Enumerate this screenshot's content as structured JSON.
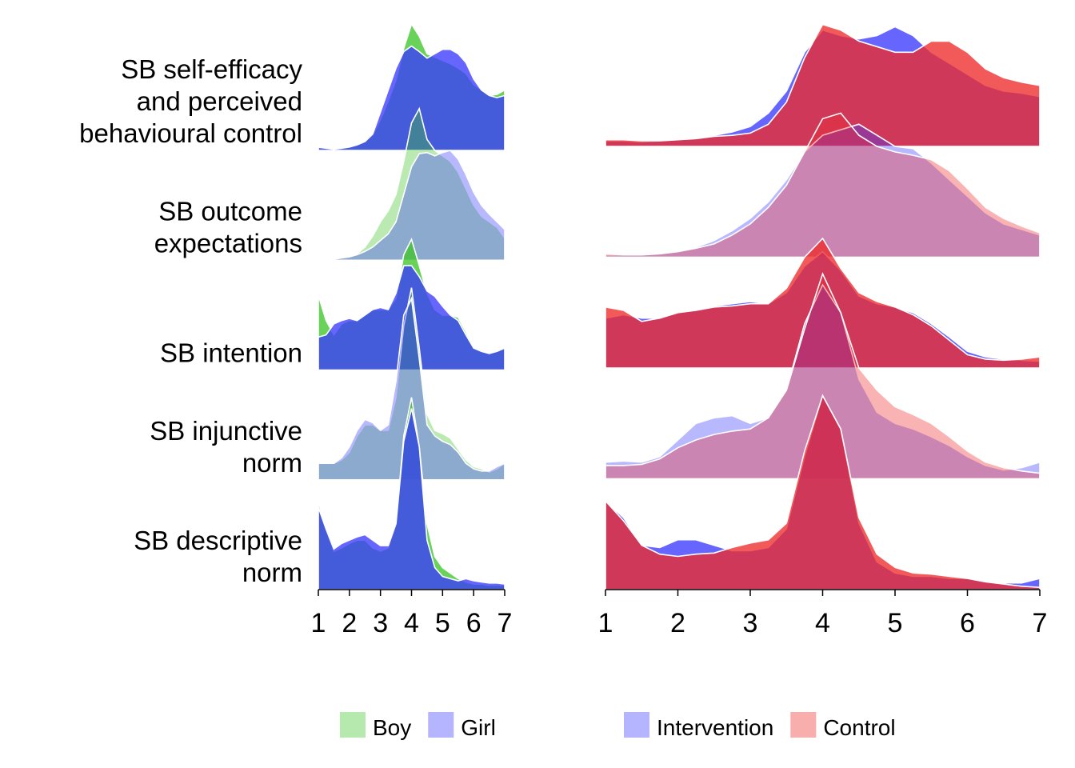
{
  "chart_data": [
    {
      "type": "ridgeline",
      "categories": [
        [
          "SB self-efficacy",
          "and perceived",
          "behavioural control"
        ],
        [
          "SB outcome",
          "expectations"
        ],
        [
          "SB intention"
        ],
        [
          "SB injunctive",
          "norm"
        ],
        [
          "SB descriptive",
          "norm"
        ]
      ],
      "x": [
        1,
        1.25,
        1.5,
        1.75,
        2,
        2.25,
        2.5,
        2.75,
        3,
        3.25,
        3.5,
        3.75,
        4,
        4.25,
        4.5,
        4.75,
        5,
        5.25,
        5.5,
        5.75,
        6,
        6.25,
        6.5,
        6.75,
        7
      ],
      "xlim": [
        1,
        7
      ],
      "xticks": [
        1,
        2,
        3,
        4,
        5,
        6,
        7
      ],
      "series": [
        {
          "name": "Boy",
          "color": "#3fc52a",
          "ridges": [
            [
              0.02,
              0.02,
              0.01,
              0.02,
              0.03,
              0.05,
              0.08,
              0.14,
              0.28,
              0.45,
              0.64,
              0.93,
              1.15,
              1.04,
              0.88,
              0.85,
              0.82,
              0.79,
              0.75,
              0.7,
              0.6,
              0.55,
              0.5,
              0.51,
              0.55
            ],
            [
              0.01,
              0.01,
              0.01,
              0.02,
              0.03,
              0.06,
              0.12,
              0.22,
              0.35,
              0.45,
              0.6,
              0.9,
              1.25,
              1.38,
              1.1,
              1.0,
              0.95,
              0.9,
              0.8,
              0.65,
              0.5,
              0.4,
              0.35,
              0.3,
              0.2
            ],
            [
              0.68,
              0.45,
              0.32,
              0.42,
              0.45,
              0.45,
              0.5,
              0.55,
              0.55,
              0.55,
              0.65,
              1.05,
              1.19,
              0.95,
              0.7,
              0.55,
              0.5,
              0.5,
              0.48,
              0.35,
              0.2,
              0.18,
              0.15,
              0.17,
              0.2
            ],
            [
              0.15,
              0.15,
              0.15,
              0.18,
              0.25,
              0.4,
              0.5,
              0.5,
              0.45,
              0.45,
              0.75,
              1.4,
              1.75,
              1.2,
              0.6,
              0.45,
              0.42,
              0.38,
              0.28,
              0.18,
              0.12,
              0.1,
              0.07,
              0.1,
              0.15
            ],
            [
              0.8,
              0.55,
              0.35,
              0.38,
              0.42,
              0.45,
              0.45,
              0.38,
              0.35,
              0.38,
              0.6,
              1.4,
              1.75,
              1.3,
              0.6,
              0.3,
              0.2,
              0.15,
              0.1,
              0.07,
              0.05,
              0.05,
              0.04,
              0.04,
              0.04
            ]
          ]
        },
        {
          "name": "Girl",
          "color": "#3b3bff",
          "ridges": [
            [
              0.03,
              0.02,
              0.01,
              0.02,
              0.03,
              0.05,
              0.08,
              0.15,
              0.35,
              0.55,
              0.75,
              0.9,
              0.95,
              0.9,
              0.84,
              0.88,
              0.92,
              0.92,
              0.88,
              0.8,
              0.65,
              0.55,
              0.5,
              0.48,
              0.5
            ],
            [
              0.01,
              0.01,
              0.01,
              0.02,
              0.03,
              0.05,
              0.08,
              0.12,
              0.18,
              0.24,
              0.35,
              0.6,
              0.85,
              0.97,
              0.98,
              0.95,
              0.98,
              1.0,
              0.92,
              0.78,
              0.62,
              0.5,
              0.42,
              0.35,
              0.28
            ],
            [
              0.3,
              0.32,
              0.42,
              0.45,
              0.47,
              0.45,
              0.5,
              0.55,
              0.57,
              0.55,
              0.7,
              0.95,
              0.95,
              0.85,
              0.72,
              0.67,
              0.58,
              0.5,
              0.45,
              0.32,
              0.2,
              0.17,
              0.15,
              0.17,
              0.2
            ],
            [
              0.15,
              0.15,
              0.15,
              0.2,
              0.3,
              0.45,
              0.55,
              0.52,
              0.45,
              0.5,
              0.9,
              1.5,
              1.65,
              1.1,
              0.5,
              0.4,
              0.35,
              0.32,
              0.25,
              0.15,
              0.1,
              0.08,
              0.08,
              0.12,
              0.15
            ],
            [
              0.75,
              0.55,
              0.37,
              0.42,
              0.45,
              0.48,
              0.5,
              0.45,
              0.4,
              0.4,
              0.6,
              1.35,
              1.65,
              1.3,
              0.45,
              0.2,
              0.12,
              0.1,
              0.08,
              0.1,
              0.08,
              0.07,
              0.06,
              0.06,
              0.05
            ]
          ]
        }
      ]
    },
    {
      "type": "ridgeline",
      "x": [
        1,
        1.25,
        1.5,
        1.75,
        2,
        2.25,
        2.5,
        2.75,
        3,
        3.25,
        3.5,
        3.75,
        4,
        4.25,
        4.5,
        4.75,
        5,
        5.25,
        5.5,
        5.75,
        6,
        6.25,
        6.5,
        6.75,
        7
      ],
      "xlim": [
        1,
        7
      ],
      "xticks": [
        1,
        2,
        3,
        4,
        5,
        6,
        7
      ],
      "series": [
        {
          "name": "Intervention",
          "color": "#3b3bff",
          "ridges": [
            [
              0.05,
              0.05,
              0.04,
              0.05,
              0.06,
              0.08,
              0.1,
              0.13,
              0.18,
              0.3,
              0.5,
              0.85,
              1.05,
              1.0,
              0.97,
              1.0,
              1.08,
              1.0,
              0.85,
              0.75,
              0.65,
              0.55,
              0.5,
              0.48,
              0.45
            ],
            [
              0.02,
              0.02,
              0.03,
              0.04,
              0.05,
              0.09,
              0.15,
              0.24,
              0.35,
              0.5,
              0.7,
              0.95,
              1.1,
              1.15,
              1.2,
              1.1,
              1.0,
              0.98,
              0.85,
              0.7,
              0.55,
              0.4,
              0.3,
              0.25,
              0.2
            ],
            [
              0.45,
              0.48,
              0.45,
              0.45,
              0.5,
              0.53,
              0.56,
              0.58,
              0.6,
              0.58,
              0.68,
              0.92,
              1.05,
              0.88,
              0.65,
              0.58,
              0.55,
              0.5,
              0.4,
              0.28,
              0.15,
              0.1,
              0.08,
              0.07,
              0.06
            ],
            [
              0.15,
              0.16,
              0.15,
              0.2,
              0.35,
              0.5,
              0.55,
              0.57,
              0.5,
              0.55,
              0.8,
              1.4,
              1.75,
              1.5,
              0.9,
              0.6,
              0.5,
              0.45,
              0.38,
              0.3,
              0.2,
              0.12,
              0.08,
              0.1,
              0.15
            ],
            [
              0.8,
              0.65,
              0.4,
              0.38,
              0.45,
              0.45,
              0.4,
              0.35,
              0.35,
              0.38,
              0.55,
              1.2,
              1.75,
              1.45,
              0.6,
              0.25,
              0.15,
              0.12,
              0.12,
              0.1,
              0.1,
              0.08,
              0.06,
              0.06,
              0.1
            ]
          ]
        },
        {
          "name": "Control",
          "color": "#ee2b2b",
          "ridges": [
            [
              0.06,
              0.06,
              0.05,
              0.05,
              0.06,
              0.07,
              0.09,
              0.1,
              0.12,
              0.2,
              0.4,
              0.8,
              1.1,
              1.05,
              0.95,
              0.9,
              0.85,
              0.85,
              0.95,
              0.95,
              0.85,
              0.7,
              0.62,
              0.58,
              0.55
            ],
            [
              0.03,
              0.02,
              0.02,
              0.03,
              0.05,
              0.08,
              0.12,
              0.2,
              0.3,
              0.45,
              0.65,
              0.95,
              1.25,
              1.3,
              1.1,
              1.0,
              0.95,
              0.92,
              0.88,
              0.78,
              0.62,
              0.45,
              0.35,
              0.28,
              0.22
            ],
            [
              0.55,
              0.52,
              0.42,
              0.45,
              0.5,
              0.52,
              0.55,
              0.56,
              0.58,
              0.58,
              0.72,
              1.0,
              1.17,
              0.9,
              0.68,
              0.6,
              0.55,
              0.48,
              0.38,
              0.25,
              0.12,
              0.08,
              0.07,
              0.08,
              0.1
            ],
            [
              0.12,
              0.12,
              0.13,
              0.18,
              0.28,
              0.35,
              0.4,
              0.43,
              0.45,
              0.55,
              0.8,
              1.35,
              1.85,
              1.5,
              1.0,
              0.8,
              0.65,
              0.58,
              0.5,
              0.38,
              0.25,
              0.15,
              0.1,
              0.07,
              0.05
            ],
            [
              0.8,
              0.62,
              0.4,
              0.32,
              0.3,
              0.32,
              0.33,
              0.38,
              0.42,
              0.45,
              0.6,
              1.25,
              1.75,
              1.45,
              0.65,
              0.32,
              0.2,
              0.15,
              0.14,
              0.12,
              0.1,
              0.07,
              0.05,
              0.03,
              0.02
            ]
          ]
        }
      ]
    }
  ]
}
